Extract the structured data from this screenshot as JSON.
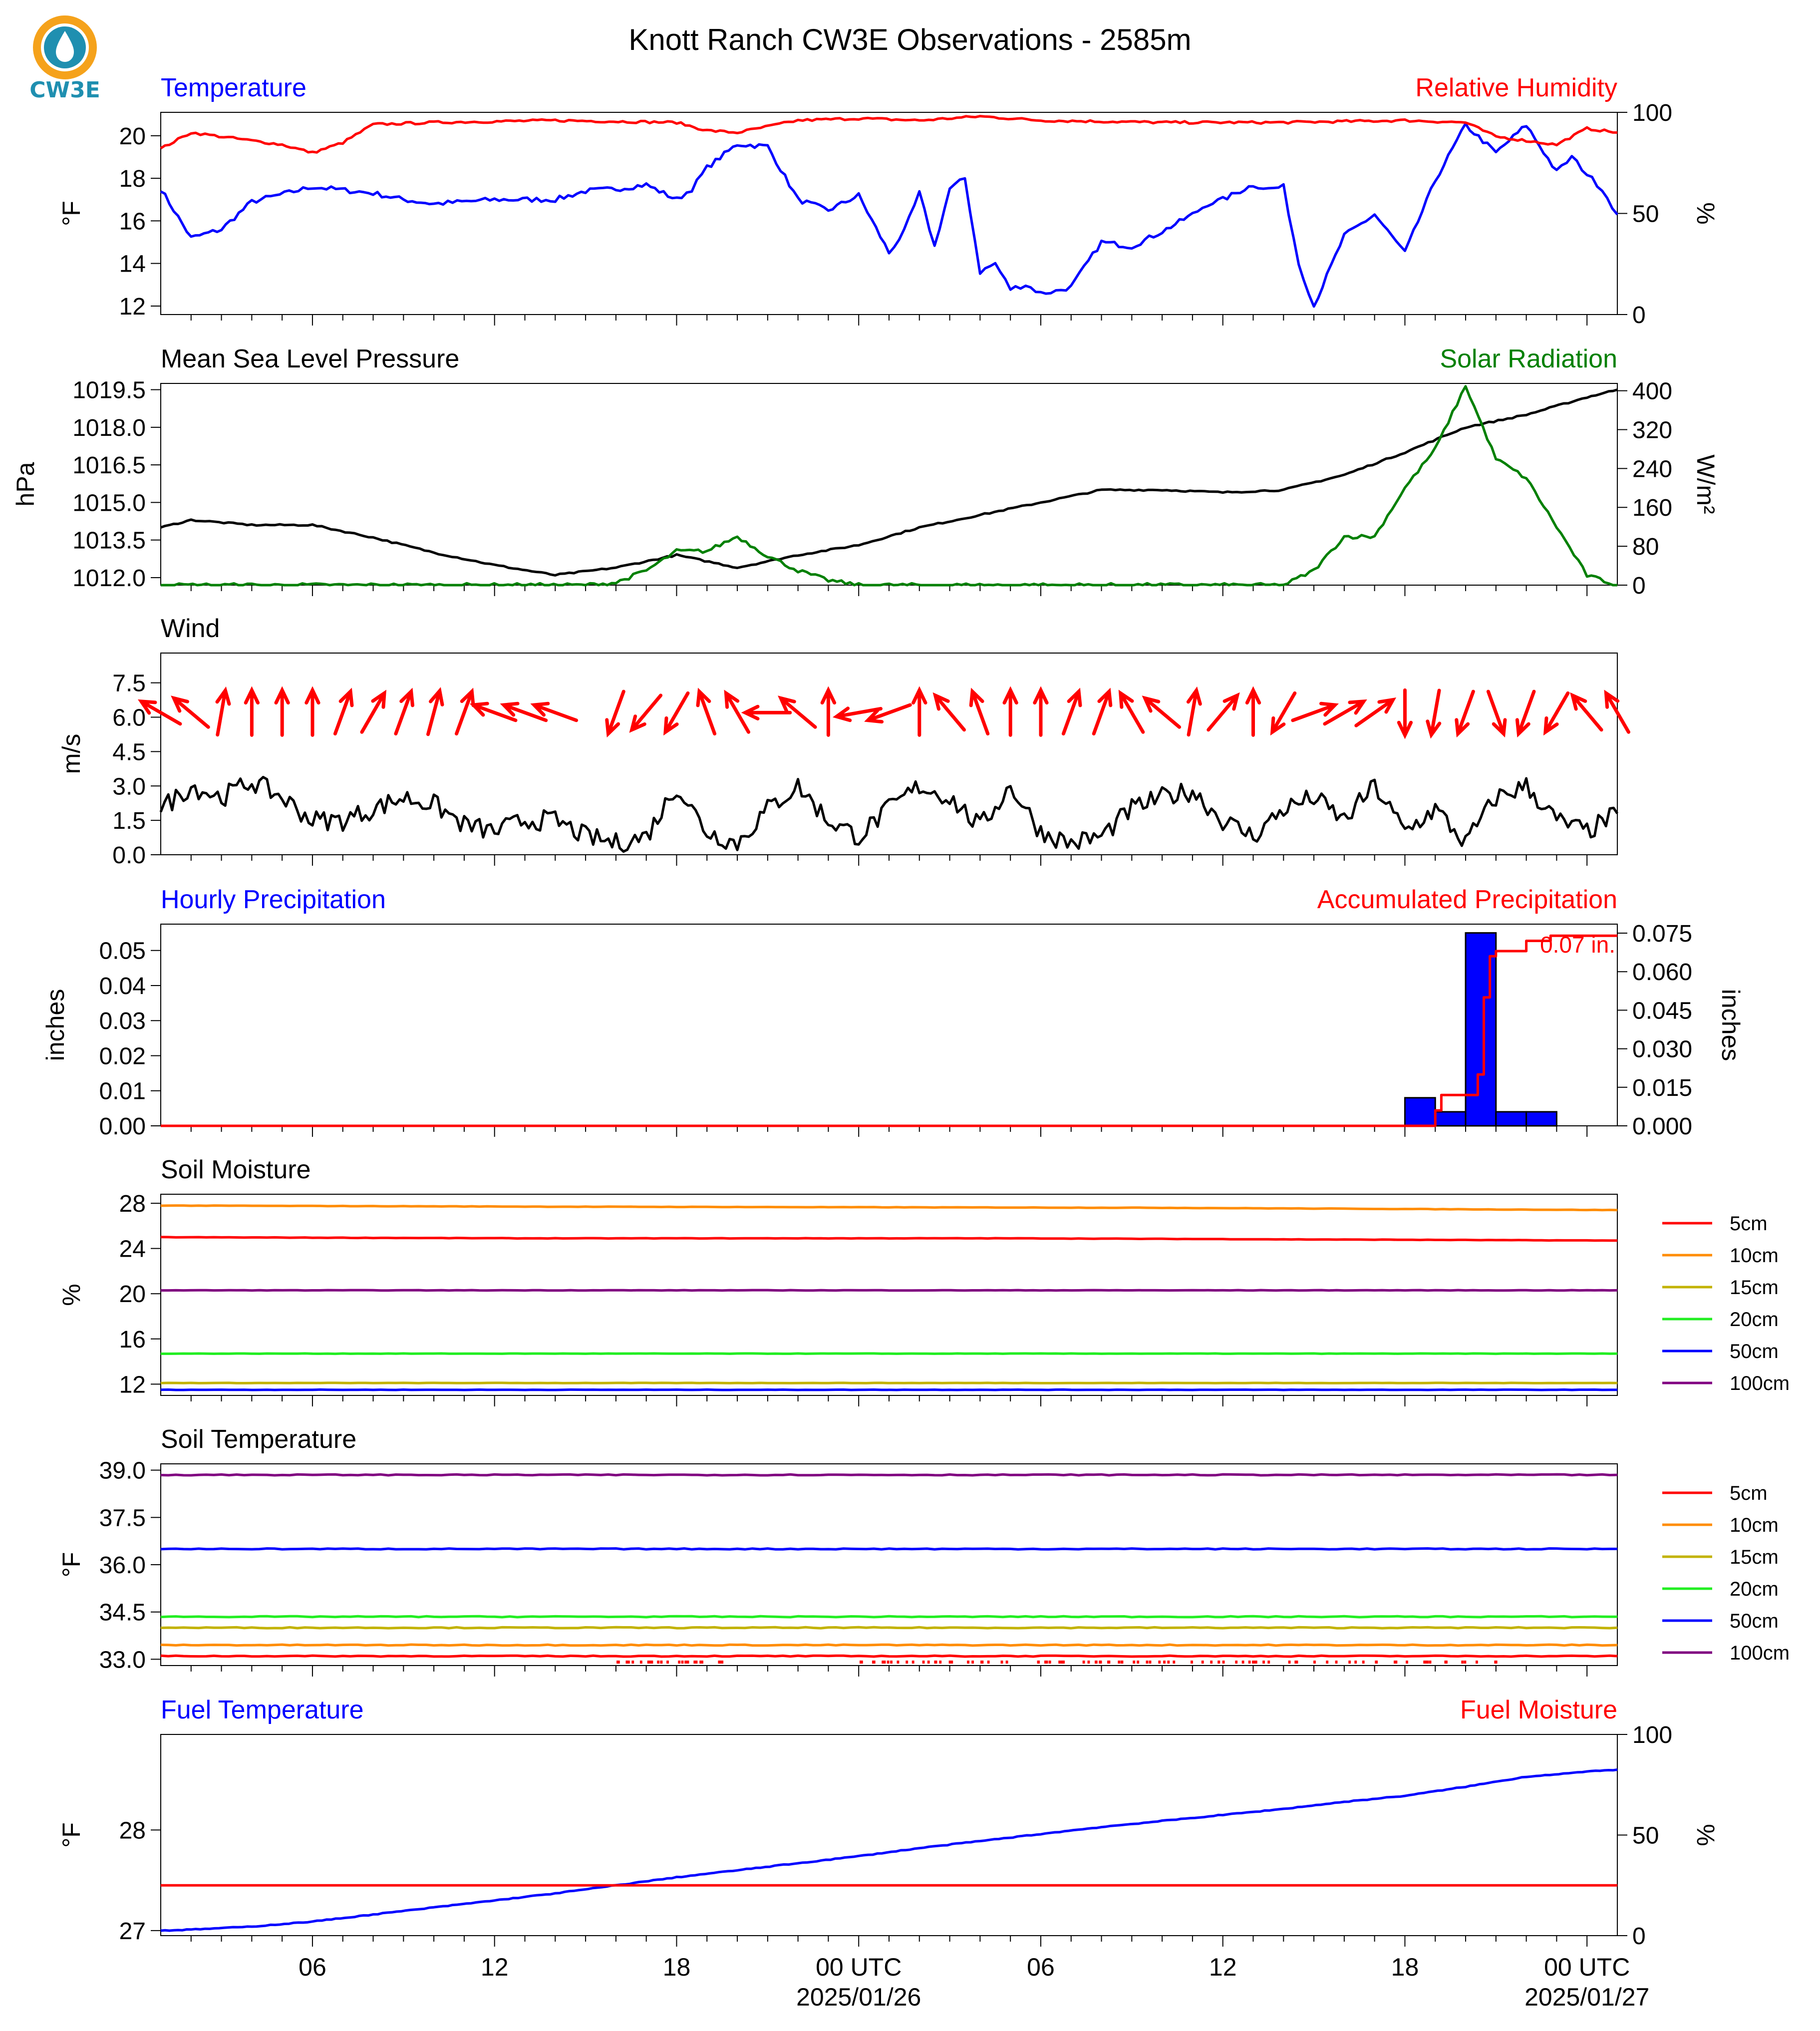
{
  "page": {
    "title": "Knott Ranch CW3E Observations - 2585m",
    "logo_text": "CW3E"
  },
  "colors": {
    "blue": "#0000ff",
    "red": "#ff0000",
    "green": "#008000",
    "black": "#000000",
    "orange": "#ff8c00",
    "olive": "#c2b200",
    "lime": "#22ee22",
    "purple": "#800080",
    "logo_orange": "#f5a21b",
    "logo_teal": "#1f8fb0"
  },
  "time_axis": {
    "ticks": [
      "06",
      "12",
      "18",
      "00 UTC",
      "06",
      "12",
      "18",
      "00 UTC"
    ],
    "dates": [
      "2025/01/26",
      "2025/01/27"
    ]
  },
  "chart_data": [
    {
      "type": "line",
      "title_left": "Temperature",
      "title_right": "Relative Humidity",
      "ylabel_left": "°F",
      "ylabel_right": "%",
      "yticks_left": [
        "12",
        "14",
        "16",
        "18",
        "20"
      ],
      "yticks_right": [
        "0",
        "50",
        "100"
      ],
      "ylim_left": [
        11.6,
        21.1
      ],
      "ylim_right": [
        0,
        100
      ],
      "series": [
        {
          "name": "Temperature",
          "axis": "left",
          "color": "blue",
          "x": [
            1,
            2,
            3,
            4,
            6,
            8,
            9,
            10,
            12,
            14,
            15,
            16,
            17,
            18,
            18.5,
            19,
            20,
            21,
            22,
            23,
            24,
            25,
            25.5,
            26,
            26.5,
            27,
            27.5,
            28,
            28.5,
            29,
            29.5,
            30,
            30.5,
            31,
            32,
            33,
            34,
            35,
            35.5,
            36,
            37,
            37.5,
            38,
            38.5,
            39,
            40,
            41,
            42,
            43,
            44,
            45,
            46,
            47,
            47.5,
            48,
            48.5,
            49
          ],
          "y": [
            17.5,
            15.2,
            15.6,
            16.9,
            17.6,
            17.3,
            17.0,
            16.8,
            17.0,
            17.0,
            17.4,
            17.5,
            17.7,
            17.0,
            17.5,
            18.5,
            19.6,
            19.5,
            17.0,
            16.5,
            17.2,
            14.5,
            15.5,
            17.3,
            14.8,
            17.5,
            18.0,
            13.6,
            14.0,
            12.8,
            13.0,
            12.6,
            12.7,
            12.9,
            15.0,
            14.8,
            15.5,
            16.3,
            16.8,
            17.0,
            17.7,
            17.5,
            17.6,
            14.0,
            12.0,
            15.3,
            16.3,
            14.5,
            17.9,
            20.5,
            19.2,
            20.5,
            18.3,
            19.0,
            18.2,
            17.5,
            16.3
          ]
        },
        {
          "name": "Relative Humidity",
          "axis": "right",
          "color": "red",
          "x": [
            1,
            2,
            4,
            5,
            6,
            7,
            8,
            10,
            14,
            18,
            19,
            20,
            22,
            24,
            26,
            28,
            30,
            34,
            38,
            42,
            44,
            45,
            46,
            47,
            48,
            49
          ],
          "y": [
            82,
            90,
            86,
            84,
            80,
            85,
            94,
            95,
            96,
            95,
            91,
            90,
            96,
            97,
            96,
            98,
            96,
            95,
            95,
            96,
            95,
            88,
            86,
            84,
            92,
            90
          ]
        }
      ]
    },
    {
      "type": "line",
      "title_left": "Mean Sea Level Pressure",
      "title_right": "Solar Radiation",
      "ylabel_left": "hPa",
      "ylabel_right": "W/m²",
      "yticks_left": [
        "1012.0",
        "1013.5",
        "1015.0",
        "1016.5",
        "1018.0",
        "1019.5"
      ],
      "yticks_right": [
        "0",
        "80",
        "160",
        "240",
        "320",
        "400"
      ],
      "ylim_left": [
        1011.7,
        1019.75
      ],
      "ylim_right": [
        0,
        415
      ],
      "series": [
        {
          "name": "Mean Sea Level Pressure",
          "axis": "left",
          "color": "black",
          "x": [
            1,
            2,
            4,
            6,
            8,
            10,
            12,
            14,
            16,
            18,
            20,
            22,
            24,
            26,
            28,
            30,
            32,
            34,
            36,
            38,
            40,
            42,
            44,
            46,
            48,
            49
          ],
          "y": [
            1014.0,
            1014.3,
            1014.1,
            1014.1,
            1013.6,
            1013.0,
            1012.5,
            1012.1,
            1012.4,
            1012.9,
            1012.4,
            1012.9,
            1013.3,
            1014.0,
            1014.5,
            1015.0,
            1015.5,
            1015.5,
            1015.4,
            1015.5,
            1016.1,
            1017.0,
            1018.0,
            1018.5,
            1019.2,
            1019.5
          ]
        },
        {
          "name": "Solar Radiation",
          "axis": "right",
          "color": "green",
          "x": [
            1,
            15,
            16,
            17,
            18,
            19,
            20,
            21,
            22,
            23,
            24,
            25,
            35,
            38,
            39,
            40,
            41,
            42,
            43,
            44,
            45,
            46,
            47,
            48,
            49
          ],
          "y": [
            0,
            0,
            5,
            30,
            70,
            70,
            100,
            60,
            30,
            10,
            0,
            0,
            0,
            0,
            30,
            100,
            100,
            200,
            280,
            410,
            260,
            220,
            120,
            20,
            0
          ]
        }
      ]
    },
    {
      "type": "line",
      "title_left": "Wind",
      "ylabel_left": "m/s",
      "yticks_left": [
        "0.0",
        "1.5",
        "3.0",
        "4.5",
        "6.0",
        "7.5"
      ],
      "ylim_left": [
        0,
        8.8
      ],
      "series": [
        {
          "name": "Wind Speed",
          "axis": "left",
          "color": "black",
          "x": [
            1,
            2,
            3,
            4,
            5,
            6,
            7,
            8,
            9,
            10,
            11,
            12,
            13,
            14,
            15,
            16,
            17,
            18,
            19,
            20,
            21,
            22,
            23,
            24,
            25,
            26,
            27,
            28,
            29,
            30,
            31,
            32,
            33,
            34,
            35,
            36,
            37,
            38,
            39,
            40,
            41,
            42,
            43,
            44,
            45,
            46,
            47,
            48,
            49
          ],
          "y": [
            2.0,
            3.0,
            2.5,
            3.2,
            2.5,
            1.5,
            1.5,
            2.0,
            2.5,
            2.2,
            1.3,
            1.0,
            1.5,
            1.5,
            0.8,
            0.5,
            0.8,
            3.0,
            1.0,
            0.5,
            2.0,
            3.0,
            1.5,
            0.8,
            2.0,
            3.0,
            2.5,
            1.2,
            3.0,
            1.0,
            0.5,
            0.8,
            2.0,
            2.5,
            2.8,
            1.5,
            0.8,
            2.0,
            2.5,
            1.5,
            3.0,
            1.0,
            2.0,
            0.5,
            2.5,
            3.0,
            1.5,
            1.0,
            1.8
          ]
        }
      ],
      "wind_arrows": {
        "x": [
          1,
          2,
          3,
          4,
          5,
          6,
          7,
          8,
          9,
          10,
          11,
          12,
          13,
          14,
          16,
          17,
          18,
          19,
          20,
          21,
          22,
          23,
          24,
          25,
          26,
          27,
          28,
          29,
          30,
          31,
          32,
          33,
          34,
          35,
          36,
          37,
          38,
          39,
          40,
          41,
          42,
          43,
          44,
          45,
          46,
          47,
          48,
          49
        ],
        "dir_deg": [
          120,
          130,
          190,
          180,
          180,
          180,
          200,
          210,
          200,
          195,
          200,
          110,
          110,
          110,
          20,
          40,
          30,
          160,
          150,
          90,
          130,
          180,
          80,
          70,
          180,
          140,
          160,
          180,
          180,
          200,
          200,
          150,
          130,
          190,
          220,
          180,
          30,
          250,
          240,
          235,
          0,
          10,
          20,
          340,
          20,
          30,
          140,
          150
        ]
      }
    },
    {
      "type": "bar",
      "title_left": "Hourly Precipitation",
      "title_right": "Accumulated Precipitation",
      "ylabel_left": "inches",
      "ylabel_right": "inches",
      "yticks_left": [
        "0.00",
        "0.01",
        "0.02",
        "0.03",
        "0.04",
        "0.05"
      ],
      "yticks_right": [
        "0.000",
        "0.015",
        "0.030",
        "0.045",
        "0.060",
        "0.075"
      ],
      "ylim_left": [
        0,
        0.0575
      ],
      "ylim_right": [
        0,
        0.0785
      ],
      "total_label": "0.07 in.",
      "bars": {
        "name": "Hourly Precipitation",
        "color": "blue",
        "x": [
          42.5,
          43.5,
          44.5,
          45.5,
          46.5
        ],
        "values": [
          0.008,
          0.004,
          0.055,
          0.004,
          0.004
        ]
      },
      "series": [
        {
          "name": "Accumulated Precipitation",
          "axis": "right",
          "color": "red",
          "x": [
            1,
            42.6,
            43.0,
            43.2,
            44.0,
            44.4,
            44.6,
            44.8,
            45.0,
            45.2,
            45.8,
            46.0,
            46.2,
            46.6,
            46.8,
            47.0,
            49
          ],
          "y": [
            0,
            0,
            0.006,
            0.012,
            0.012,
            0.02,
            0.05,
            0.066,
            0.068,
            0.068,
            0.068,
            0.072,
            0.072,
            0.072,
            0.074,
            0.074,
            0.074
          ]
        }
      ]
    },
    {
      "type": "line",
      "title_left": "Soil Moisture",
      "ylabel_left": "%",
      "yticks_left": [
        "12",
        "16",
        "20",
        "24",
        "28"
      ],
      "ylim_left": [
        11.0,
        28.8
      ],
      "legend": [
        "5cm",
        "10cm",
        "15cm",
        "20cm",
        "50cm",
        "100cm"
      ],
      "series": [
        {
          "name": "5cm",
          "color": "red",
          "x": [
            1,
            13,
            29,
            49
          ],
          "y": [
            25.0,
            24.9,
            24.9,
            24.7
          ]
        },
        {
          "name": "10cm",
          "color": "orange",
          "x": [
            1,
            14,
            34,
            49
          ],
          "y": [
            27.8,
            27.7,
            27.6,
            27.4
          ]
        },
        {
          "name": "15cm",
          "color": "olive",
          "x": [
            1,
            49
          ],
          "y": [
            12.1,
            12.1
          ]
        },
        {
          "name": "20cm",
          "color": "lime",
          "x": [
            1,
            49
          ],
          "y": [
            14.7,
            14.7
          ]
        },
        {
          "name": "50cm",
          "color": "blue",
          "x": [
            1,
            49
          ],
          "y": [
            11.5,
            11.5
          ]
        },
        {
          "name": "100cm",
          "color": "purple",
          "x": [
            1,
            49
          ],
          "y": [
            20.3,
            20.3
          ]
        }
      ]
    },
    {
      "type": "line",
      "title_left": "Soil Temperature",
      "ylabel_left": "°F",
      "yticks_left": [
        "33.0",
        "34.5",
        "36.0",
        "37.5",
        "39.0"
      ],
      "ylim_left": [
        32.8,
        39.2
      ],
      "legend": [
        "5cm",
        "10cm",
        "15cm",
        "20cm",
        "50cm",
        "100cm"
      ],
      "series": [
        {
          "name": "5cm",
          "color": "red",
          "x": [
            1,
            49
          ],
          "y": [
            33.1,
            33.1
          ]
        },
        {
          "name": "10cm",
          "color": "orange",
          "x": [
            1,
            49
          ],
          "y": [
            33.45,
            33.45
          ]
        },
        {
          "name": "15cm",
          "color": "olive",
          "x": [
            1,
            49
          ],
          "y": [
            34.0,
            34.0
          ]
        },
        {
          "name": "20cm",
          "color": "lime",
          "x": [
            1,
            49
          ],
          "y": [
            34.35,
            34.35
          ]
        },
        {
          "name": "50cm",
          "color": "blue",
          "x": [
            1,
            49
          ],
          "y": [
            36.5,
            36.5
          ]
        },
        {
          "name": "100cm",
          "color": "purple",
          "x": [
            1,
            49
          ],
          "y": [
            38.85,
            38.85
          ]
        }
      ]
    },
    {
      "type": "line",
      "title_left": "Fuel Temperature",
      "title_right": "Fuel Moisture",
      "ylabel_left": "°F",
      "ylabel_right": "%",
      "yticks_left": [
        "27",
        "28"
      ],
      "yticks_right": [
        "0",
        "50",
        "100"
      ],
      "ylim_left": [
        26.95,
        28.95
      ],
      "ylim_right": [
        0,
        100
      ],
      "series": [
        {
          "name": "Fuel Temperature",
          "axis": "left",
          "color": "blue",
          "x": [
            1,
            2,
            4,
            6,
            8,
            10,
            12,
            14,
            16,
            18,
            20,
            22,
            24,
            26,
            28,
            30,
            32,
            34,
            36,
            38,
            40,
            42,
            44,
            46,
            48,
            49
          ],
          "y": [
            27.0,
            27.01,
            27.04,
            27.09,
            27.16,
            27.23,
            27.3,
            27.37,
            27.45,
            27.53,
            27.6,
            27.67,
            27.74,
            27.82,
            27.89,
            27.96,
            28.03,
            28.09,
            28.15,
            28.21,
            28.28,
            28.34,
            28.43,
            28.53,
            28.58,
            28.6
          ]
        },
        {
          "name": "Fuel Moisture",
          "axis": "right",
          "color": "red",
          "x": [
            1,
            49
          ],
          "y": [
            25,
            25
          ]
        }
      ]
    }
  ]
}
